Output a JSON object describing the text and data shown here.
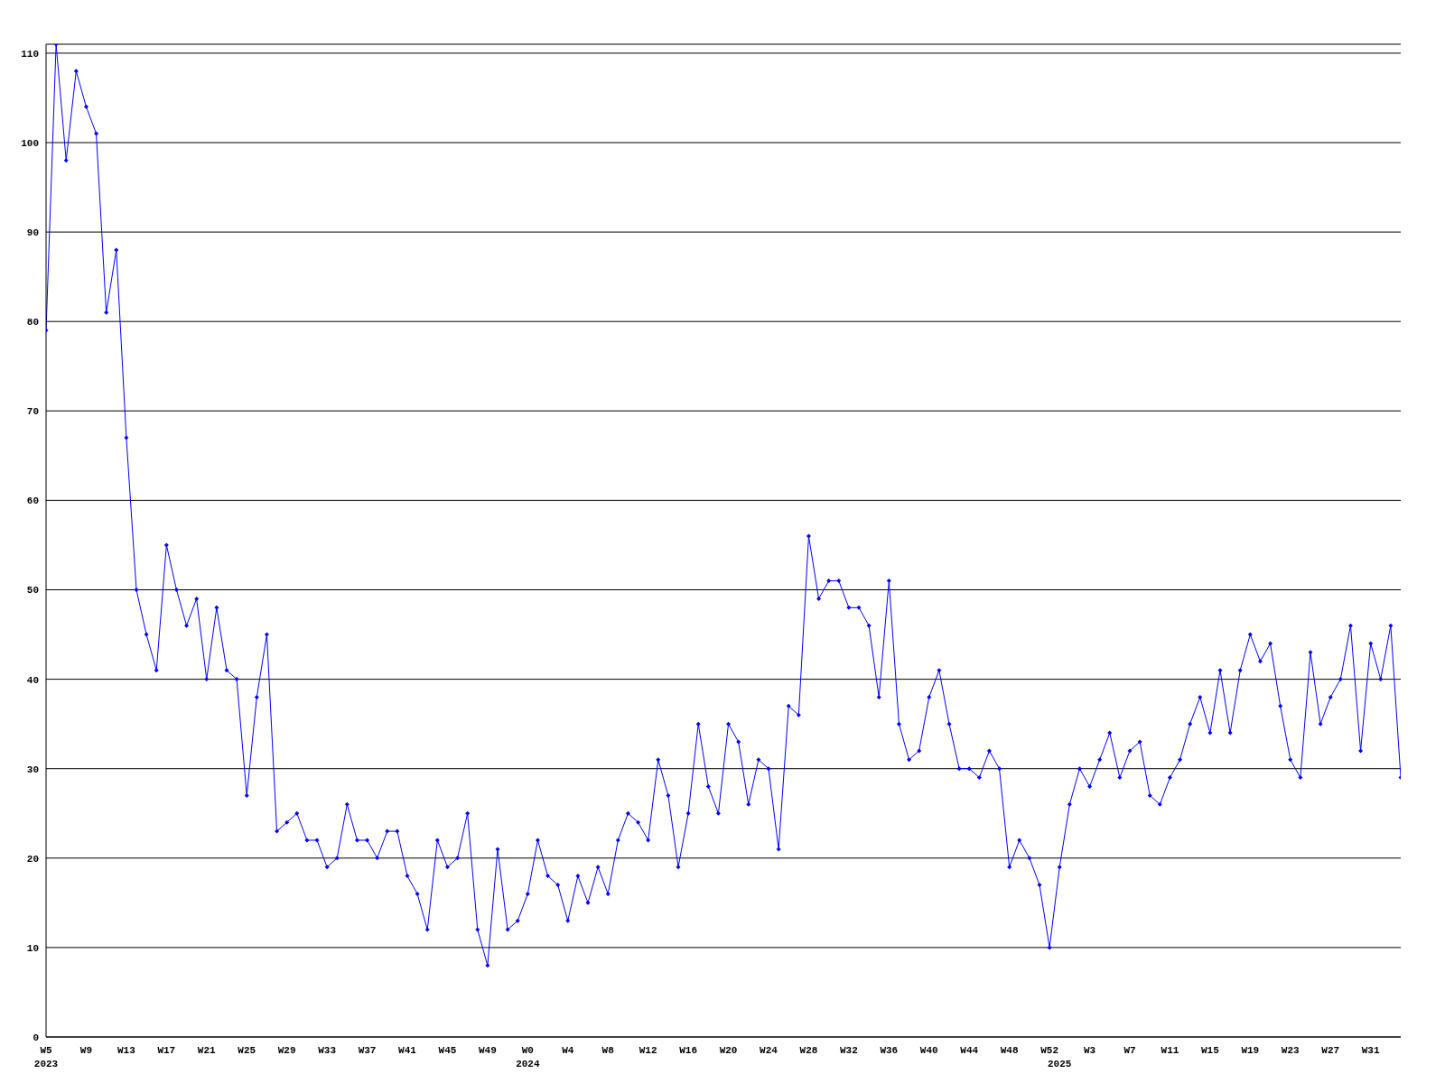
{
  "chart_data": {
    "type": "line",
    "categories": [
      "W5\n2023",
      null,
      null,
      null,
      "W9",
      null,
      null,
      null,
      "W13",
      null,
      null,
      null,
      "W17",
      null,
      null,
      null,
      "W21",
      null,
      null,
      null,
      "W25",
      null,
      null,
      null,
      "W29",
      null,
      null,
      null,
      "W33",
      null,
      null,
      null,
      "W37",
      null,
      null,
      null,
      "W41",
      null,
      null,
      null,
      "W45",
      null,
      null,
      null,
      "W49",
      null,
      null,
      null,
      "W0\n2024",
      null,
      null,
      null,
      "W4",
      null,
      null,
      null,
      "W8",
      null,
      null,
      null,
      "W12",
      null,
      null,
      null,
      "W16",
      null,
      null,
      null,
      "W20",
      null,
      null,
      null,
      "W24",
      null,
      null,
      null,
      "W28",
      null,
      null,
      null,
      "W32",
      null,
      null,
      null,
      "W36",
      null,
      null,
      null,
      "W40",
      null,
      null,
      null,
      "W44",
      null,
      null,
      null,
      "W48",
      null,
      null,
      null,
      "W52",
      "\n2025",
      null,
      null,
      "W3",
      null,
      null,
      null,
      "W7",
      null,
      null,
      null,
      "W11",
      null,
      null,
      null,
      "W15",
      null,
      null,
      null,
      "W19",
      null,
      null,
      null,
      "W23",
      null,
      null,
      null,
      "W27",
      null,
      null,
      null,
      "W31",
      null,
      null,
      null
    ],
    "series": [
      {
        "color": "#0000ff",
        "values": [
          79,
          111,
          98,
          108,
          104,
          101,
          81,
          88,
          67,
          50,
          45,
          41,
          55,
          50,
          46,
          49,
          40,
          48,
          41,
          40,
          27,
          38,
          45,
          23,
          24,
          25,
          22,
          22,
          19,
          20,
          26,
          22,
          22,
          20,
          23,
          23,
          18,
          16,
          12,
          22,
          19,
          20,
          25,
          12,
          8,
          21,
          12,
          13,
          16,
          22,
          18,
          17,
          13,
          18,
          15,
          19,
          16,
          22,
          25,
          24,
          22,
          31,
          27,
          19,
          25,
          35,
          28,
          25,
          35,
          33,
          26,
          31,
          30,
          21,
          37,
          36,
          56,
          49,
          51,
          51,
          48,
          48,
          46,
          38,
          51,
          35,
          31,
          32,
          38,
          41,
          35,
          30,
          30,
          29,
          32,
          30,
          19,
          22,
          20,
          17,
          10,
          19,
          26,
          30,
          28,
          31,
          34,
          29,
          32,
          33,
          27,
          26,
          29,
          31,
          35,
          38,
          34,
          41,
          34,
          41,
          45,
          42,
          44,
          37,
          31,
          29,
          43,
          35,
          38,
          40,
          46,
          32,
          44,
          40,
          46,
          29
        ]
      }
    ],
    "ylim": [
      0,
      111
    ],
    "yticks": [
      0,
      10,
      20,
      30,
      40,
      50,
      60,
      70,
      80,
      90,
      100,
      110
    ],
    "grid": "y",
    "legend": false,
    "marker": "diamond",
    "line_style": "solid"
  }
}
